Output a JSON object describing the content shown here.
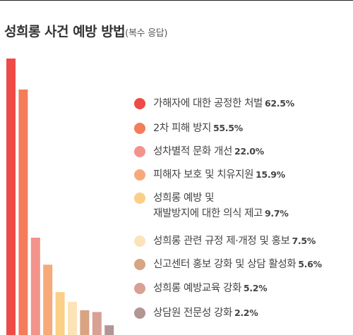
{
  "title": {
    "main": "성희롱 사건 예방 방법",
    "sub": "(복수 응답)"
  },
  "chart_data": {
    "type": "bar",
    "title": "성희롱 사건 예방 방법",
    "subtitle": "(복수 응답)",
    "unit": "%",
    "xlabel": "",
    "ylabel": "",
    "ylim": [
      0,
      67
    ],
    "grid": false,
    "legend_placement": "right",
    "categories": [
      {
        "label_lines": [
          "가해자에 대한 공정한 처벌"
        ],
        "value_text": "62.5%",
        "color": "#ee4b46"
      },
      {
        "label_lines": [
          "2차 피해 방지"
        ],
        "value_text": "55.5%",
        "color": "#f47c5a"
      },
      {
        "label_lines": [
          "성차별적 문화 개선"
        ],
        "value_text": "22.0%",
        "color": "#f3938b"
      },
      {
        "label_lines": [
          "피해자 보호 및 치유지원"
        ],
        "value_text": "15.9%",
        "color": "#f6aa7a"
      },
      {
        "label_lines": [
          "성희롱 예방 및",
          "재발방지에 대한 의식 제고"
        ],
        "value_text": "9.7%",
        "color": "#fbcf86"
      },
      {
        "label_lines": [
          "성희롱 관련 규정 제·개정 및 홍보"
        ],
        "value_text": "7.5%",
        "color": "#fde3b8"
      },
      {
        "label_lines": [
          "신고센터 홍보 강화 및 상담 활성화"
        ],
        "value_text": "5.6%",
        "color": "#d8a482"
      },
      {
        "label_lines": [
          "성희롱 예방교육 강화"
        ],
        "value_text": "5.2%",
        "color": "#d9a095"
      },
      {
        "label_lines": [
          "상담원 전문성 강화"
        ],
        "value_text": "2.2%",
        "color": "#b39594"
      }
    ],
    "values": [
      62.5,
      55.5,
      22.0,
      15.9,
      9.7,
      7.5,
      5.6,
      5.2,
      2.2
    ]
  }
}
